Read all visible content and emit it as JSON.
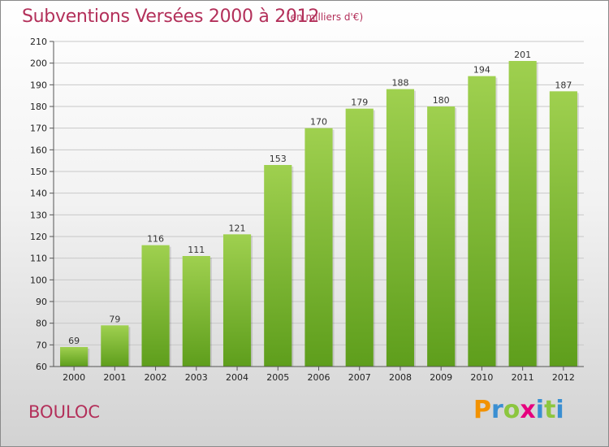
{
  "header": {
    "title": "Subventions Versées 2000 à 2012",
    "unit": "(en milliers d'€)"
  },
  "footer": {
    "commune": "BOULOC",
    "brand": "Proxiti"
  },
  "colors": {
    "title": "#b3305a",
    "bar_top": "#9fd04f",
    "bar_bottom": "#5e9e1c",
    "grid": "#c8c8c8",
    "brand_letters": [
      "#f29200",
      "#3a8fd2",
      "#8cc63f",
      "#e6007e",
      "#3a8fd2",
      "#8cc63f",
      "#3a8fd2"
    ]
  },
  "chart_data": {
    "type": "bar",
    "title": "Subventions Versées 2000 à 2012",
    "subtitle": "(en milliers d'€)",
    "xlabel": "",
    "ylabel": "",
    "categories": [
      "2000",
      "2001",
      "2002",
      "2003",
      "2004",
      "2005",
      "2006",
      "2007",
      "2008",
      "2009",
      "2010",
      "2011",
      "2012"
    ],
    "values": [
      69,
      79,
      116,
      111,
      121,
      153,
      170,
      179,
      188,
      180,
      194,
      201,
      187
    ],
    "ylim": [
      60,
      210
    ],
    "yticks": [
      60,
      70,
      80,
      90,
      100,
      110,
      120,
      130,
      140,
      150,
      160,
      170,
      180,
      190,
      200,
      210
    ],
    "grid": true,
    "legend": "none",
    "data_labels": true
  }
}
